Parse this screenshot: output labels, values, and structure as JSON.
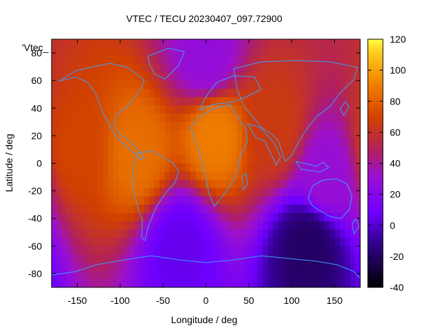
{
  "chart_data": {
    "type": "heatmap",
    "title": "VTEC / TECU 20230407_097.72900",
    "xlabel": "Longitude / deg",
    "ylabel": "Latitude / deg",
    "xlim": [
      -180,
      180
    ],
    "ylim": [
      -90,
      90
    ],
    "xticks": [
      -150,
      -100,
      -50,
      0,
      50,
      100,
      150
    ],
    "yticks": [
      -80,
      -60,
      -40,
      -20,
      0,
      20,
      40,
      60,
      80
    ],
    "colorbar": {
      "min": -40,
      "max": 120,
      "ticks": [
        -40,
        -20,
        0,
        20,
        40,
        60,
        80,
        100,
        120
      ]
    },
    "legend": "'Vtec_",
    "field_samples": [
      {
        "lon": -80,
        "lat": 5,
        "value": 85
      },
      {
        "lon": 10,
        "lat": 20,
        "value": 90
      },
      {
        "lon": -150,
        "lat": 10,
        "value": 70
      },
      {
        "lon": 80,
        "lat": 25,
        "value": 65
      },
      {
        "lon": 140,
        "lat": -10,
        "value": 30
      },
      {
        "lon": -30,
        "lat": -60,
        "value": 5
      },
      {
        "lon": 120,
        "lat": -60,
        "value": -20
      },
      {
        "lon": 0,
        "lat": 75,
        "value": 28
      }
    ]
  },
  "colors": {
    "low": "#000000",
    "mid_low": "#7b00ff",
    "mid": "#b02050",
    "mid_high": "#e07000",
    "high": "#ffff30",
    "coastline": "#3aa0ff"
  }
}
